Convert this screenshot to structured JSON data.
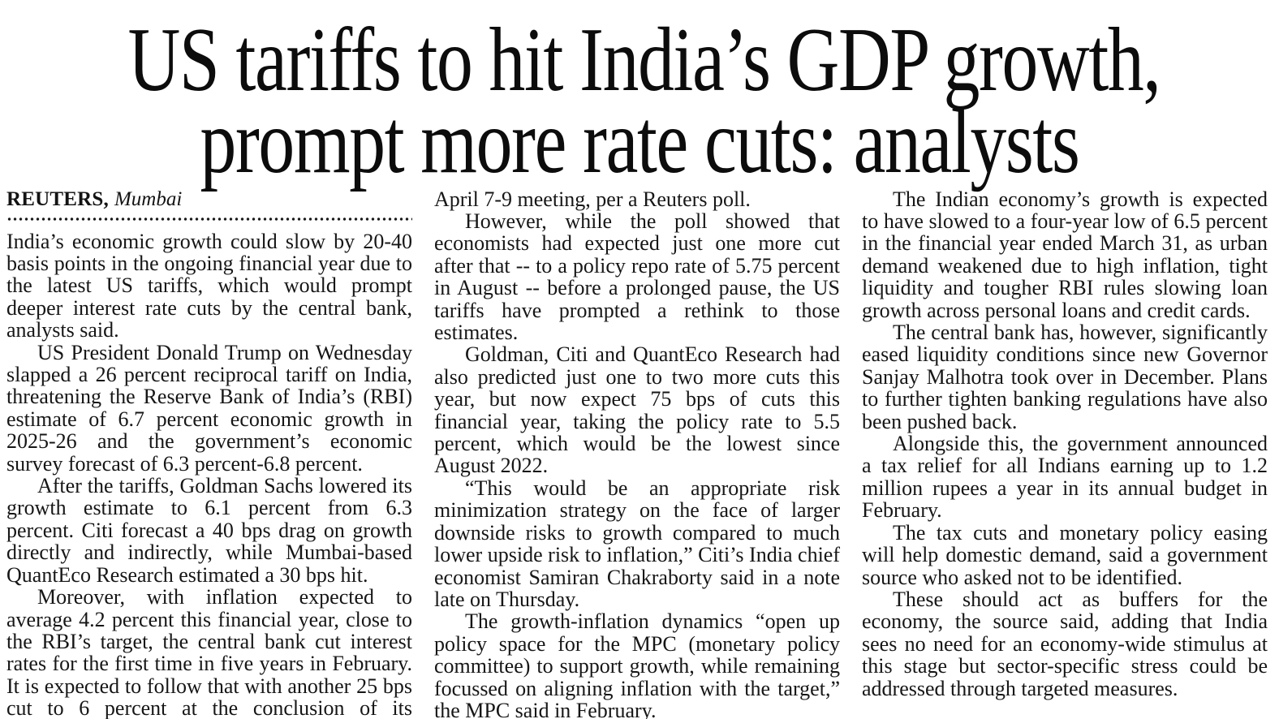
{
  "article": {
    "headline_line1": "US tariffs to hit India’s GDP growth,",
    "headline_line2": "prompt more rate cuts: analysts",
    "byline": {
      "agency": "REUTERS,",
      "location": "Mumbai"
    },
    "columns": {
      "col1": {
        "p1": "India’s economic growth could slow by 20-40 basis points in the ongoing financial year due to the latest US tariffs, which would prompt deeper interest rate cuts by the central bank, analysts said.",
        "p2": "US President Donald Trump on Wednesday slapped a 26 percent reciprocal tariff on India, threatening the Reserve Bank of India’s (RBI) estimate of 6.7 percent economic growth in 2025-26 and the government’s economic survey forecast of 6.3 percent-6.8 percent.",
        "p3": "After the tariffs, Goldman Sachs lowered its growth estimate to 6.1 percent from 6.3 percent. Citi forecast a 40 bps drag on growth directly and indirectly, while Mumbai-based QuantEco Research estimated a 30 bps hit.",
        "p4": "Moreover, with inflation expected to average 4.2 percent this financial year, close to the RBI’s target, the central bank cut interest rates for the first time in five years in February. It is expected to follow that with another 25 bps cut to 6 percent at the conclusion of its"
      },
      "col2": {
        "p1": "April 7-9 meeting, per a Reuters poll.",
        "p2": "However, while the poll showed that economists had expected just one more cut after that -- to a policy repo rate of 5.75 percent in August -- before a prolonged pause, the US tariffs have prompted a rethink to those estimates.",
        "p3": "Goldman, Citi and QuantEco Research had also predicted just one to two more cuts this year, but now expect 75 bps of cuts this financial year, taking the policy rate to 5.5 percent, which would be the lowest since August 2022.",
        "p4": "“This would be an appropriate risk minimization strategy on the face of larger downside risks to growth compared to much lower upside risk to inflation,” Citi’s India chief economist Samiran Chakraborty said in a note late on Thursday.",
        "p5": "The growth-inflation dynamics “open up policy space for the MPC (monetary policy committee) to support growth, while remaining focussed on aligning inflation with the target,” the MPC said in February."
      },
      "col3": {
        "p1": "The Indian economy’s growth is expected to have slowed to a four-year low of 6.5 percent in the financial year ended March 31, as urban demand weakened due to high inflation, tight liquidity and tougher RBI rules slowing loan growth across personal loans and credit cards.",
        "p2": "The central bank has, however, significantly eased liquidity conditions since new Governor Sanjay Malhotra took over in December. Plans to further tighten banking regulations have also been pushed back.",
        "p3": "Alongside this, the government announced a tax relief for all Indians earning up to 1.2 million rupees a year in its annual budget in February.",
        "p4": "The tax cuts and monetary policy easing will help domestic demand, said a government source who asked not to be identified.",
        "p5": "These should act as buffers for the economy, the source said, adding that India sees no need for an economy-wide stimulus at this stage but sector-specific stress could be addressed through targeted measures."
      }
    }
  }
}
